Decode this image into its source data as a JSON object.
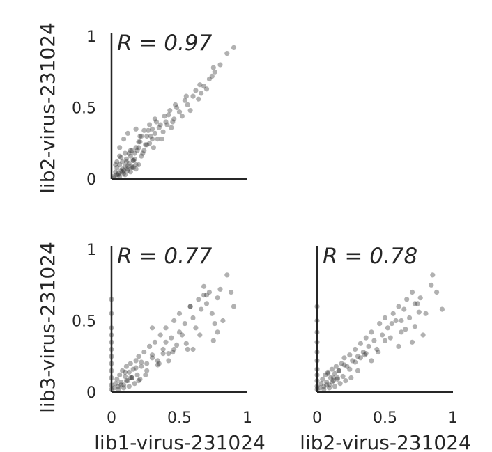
{
  "chart_data": [
    {
      "type": "scatter",
      "panel": "lib1-vs-lib2",
      "xlabel": "",
      "ylabel": "lib2-virus-231024",
      "annotation": "R = 0.97",
      "xlim": [
        0,
        1
      ],
      "ylim": [
        0,
        1
      ],
      "xticks": [
        "0",
        "0.5",
        "1"
      ],
      "yticks": [
        "0",
        "0.5",
        "1"
      ],
      "show_xticks": false,
      "grid": false,
      "x": [
        0.02,
        0.03,
        0.04,
        0.05,
        0.06,
        0.07,
        0.08,
        0.09,
        0.1,
        0.11,
        0.12,
        0.13,
        0.14,
        0.15,
        0.16,
        0.17,
        0.18,
        0.2,
        0.22,
        0.24,
        0.26,
        0.28,
        0.3,
        0.32,
        0.34,
        0.36,
        0.38,
        0.4,
        0.42,
        0.44,
        0.46,
        0.48,
        0.5,
        0.52,
        0.54,
        0.56,
        0.58,
        0.6,
        0.62,
        0.64,
        0.66,
        0.68,
        0.7,
        0.72,
        0.74,
        0.76,
        0.8,
        0.85,
        0.9,
        0.03,
        0.05,
        0.07,
        0.09,
        0.11,
        0.13,
        0.15,
        0.17,
        0.19,
        0.21,
        0.23,
        0.25,
        0.27,
        0.29,
        0.31,
        0.33,
        0.35,
        0.37,
        0.39,
        0.41,
        0.43,
        0.45,
        0.47,
        0.55,
        0.65,
        0.75,
        0.02,
        0.04,
        0.06,
        0.08,
        0.1,
        0.12,
        0.14,
        0.16,
        0.18,
        0.2,
        0.04,
        0.06,
        0.08,
        0.1,
        0.12,
        0.14,
        0.16,
        0.18,
        0.2,
        0.22,
        0.24,
        0.26,
        0.28,
        0.3,
        0.32,
        0.06,
        0.09,
        0.12,
        0.15,
        0.18,
        0.21
      ],
      "y": [
        0.02,
        0.05,
        0.08,
        0.03,
        0.1,
        0.06,
        0.12,
        0.04,
        0.09,
        0.14,
        0.07,
        0.11,
        0.16,
        0.08,
        0.13,
        0.18,
        0.1,
        0.22,
        0.16,
        0.2,
        0.3,
        0.25,
        0.35,
        0.32,
        0.28,
        0.38,
        0.33,
        0.4,
        0.45,
        0.36,
        0.42,
        0.5,
        0.47,
        0.44,
        0.55,
        0.52,
        0.48,
        0.58,
        0.62,
        0.56,
        0.6,
        0.65,
        0.63,
        0.7,
        0.72,
        0.75,
        0.8,
        0.88,
        0.92,
        0.1,
        0.04,
        0.15,
        0.06,
        0.12,
        0.18,
        0.09,
        0.14,
        0.2,
        0.26,
        0.18,
        0.24,
        0.34,
        0.3,
        0.22,
        0.4,
        0.36,
        0.28,
        0.44,
        0.38,
        0.48,
        0.4,
        0.52,
        0.58,
        0.66,
        0.78,
        0.01,
        0.03,
        0.02,
        0.05,
        0.03,
        0.06,
        0.05,
        0.08,
        0.07,
        0.1,
        0.12,
        0.16,
        0.07,
        0.18,
        0.09,
        0.2,
        0.13,
        0.22,
        0.26,
        0.3,
        0.34,
        0.24,
        0.38,
        0.28,
        0.42,
        0.22,
        0.28,
        0.32,
        0.2,
        0.35,
        0.3
      ]
    },
    {
      "type": "scatter",
      "panel": "lib1-vs-lib3",
      "xlabel": "lib1-virus-231024",
      "ylabel": "lib3-virus-231024",
      "annotation": "R = 0.77",
      "xlim": [
        0,
        1
      ],
      "ylim": [
        0,
        1
      ],
      "xticks": [
        "0",
        "0.5",
        "1"
      ],
      "yticks": [
        "0",
        "0.5",
        "1"
      ],
      "grid": false,
      "x": [
        0.0,
        0.0,
        0.0,
        0.0,
        0.0,
        0.0,
        0.0,
        0.0,
        0.0,
        0.0,
        0.0,
        0.0,
        0.02,
        0.03,
        0.04,
        0.05,
        0.06,
        0.07,
        0.08,
        0.09,
        0.1,
        0.11,
        0.12,
        0.13,
        0.14,
        0.15,
        0.16,
        0.18,
        0.2,
        0.22,
        0.24,
        0.26,
        0.28,
        0.3,
        0.32,
        0.34,
        0.36,
        0.38,
        0.4,
        0.42,
        0.44,
        0.46,
        0.48,
        0.5,
        0.52,
        0.54,
        0.56,
        0.58,
        0.6,
        0.62,
        0.64,
        0.66,
        0.68,
        0.7,
        0.72,
        0.74,
        0.76,
        0.78,
        0.8,
        0.85,
        0.9,
        0.25,
        0.35,
        0.45,
        0.55,
        0.65,
        0.75,
        0.82,
        0.5,
        0.6,
        0.7,
        0.4,
        0.3,
        0.2,
        0.58,
        0.68,
        0.78,
        0.88,
        0.05,
        0.07,
        0.09,
        0.11,
        0.13,
        0.15,
        0.17,
        0.19,
        0.21,
        0.1,
        0.14,
        0.18,
        0.22,
        0.26,
        0.3,
        0.34,
        0.38,
        0.42,
        0.46
      ],
      "y": [
        0.65,
        0.55,
        0.45,
        0.4,
        0.35,
        0.3,
        0.25,
        0.2,
        0.15,
        0.1,
        0.05,
        0.02,
        0.03,
        0.06,
        0.09,
        0.04,
        0.12,
        0.07,
        0.15,
        0.05,
        0.11,
        0.18,
        0.08,
        0.14,
        0.2,
        0.1,
        0.16,
        0.22,
        0.25,
        0.18,
        0.28,
        0.2,
        0.32,
        0.26,
        0.35,
        0.22,
        0.4,
        0.3,
        0.45,
        0.27,
        0.38,
        0.5,
        0.33,
        0.55,
        0.4,
        0.48,
        0.3,
        0.6,
        0.52,
        0.45,
        0.65,
        0.58,
        0.68,
        0.62,
        0.7,
        0.55,
        0.48,
        0.66,
        0.72,
        0.82,
        0.6,
        0.12,
        0.2,
        0.28,
        0.34,
        0.4,
        0.36,
        0.5,
        0.42,
        0.3,
        0.68,
        0.35,
        0.45,
        0.08,
        0.6,
        0.74,
        0.42,
        0.7,
        0.02,
        0.05,
        0.03,
        0.08,
        0.04,
        0.1,
        0.06,
        0.12,
        0.09,
        0.14,
        0.1,
        0.17,
        0.21,
        0.15,
        0.24,
        0.19,
        0.27,
        0.22,
        0.3
      ]
    },
    {
      "type": "scatter",
      "panel": "lib2-vs-lib3",
      "xlabel": "lib2-virus-231024",
      "ylabel": "",
      "annotation": "R = 0.78",
      "xlim": [
        0,
        1
      ],
      "ylim": [
        0,
        1
      ],
      "xticks": [
        "0",
        "0.5",
        "1"
      ],
      "yticks": [
        "0",
        "0.5",
        "1"
      ],
      "show_yticks": false,
      "grid": false,
      "x": [
        0.0,
        0.0,
        0.0,
        0.0,
        0.0,
        0.0,
        0.0,
        0.0,
        0.0,
        0.0,
        0.0,
        0.02,
        0.03,
        0.04,
        0.05,
        0.06,
        0.07,
        0.08,
        0.09,
        0.1,
        0.11,
        0.12,
        0.13,
        0.14,
        0.15,
        0.16,
        0.18,
        0.2,
        0.22,
        0.24,
        0.26,
        0.28,
        0.3,
        0.32,
        0.34,
        0.36,
        0.38,
        0.4,
        0.42,
        0.44,
        0.46,
        0.48,
        0.5,
        0.52,
        0.54,
        0.56,
        0.58,
        0.6,
        0.62,
        0.64,
        0.66,
        0.68,
        0.7,
        0.72,
        0.74,
        0.76,
        0.78,
        0.8,
        0.84,
        0.88,
        0.92,
        0.3,
        0.4,
        0.5,
        0.55,
        0.6,
        0.65,
        0.7,
        0.75,
        0.85,
        0.45,
        0.35,
        0.25,
        0.62,
        0.72,
        0.05,
        0.07,
        0.09,
        0.11,
        0.13,
        0.15,
        0.17,
        0.19,
        0.21,
        0.08,
        0.12,
        0.16,
        0.2,
        0.24,
        0.28,
        0.32,
        0.36
      ],
      "y": [
        0.6,
        0.5,
        0.42,
        0.35,
        0.28,
        0.22,
        0.16,
        0.12,
        0.08,
        0.04,
        0.02,
        0.03,
        0.06,
        0.09,
        0.04,
        0.12,
        0.07,
        0.14,
        0.05,
        0.1,
        0.16,
        0.08,
        0.13,
        0.18,
        0.1,
        0.15,
        0.2,
        0.24,
        0.18,
        0.26,
        0.22,
        0.3,
        0.25,
        0.34,
        0.28,
        0.38,
        0.32,
        0.42,
        0.36,
        0.3,
        0.48,
        0.4,
        0.52,
        0.45,
        0.38,
        0.55,
        0.5,
        0.6,
        0.42,
        0.58,
        0.65,
        0.52,
        0.7,
        0.46,
        0.62,
        0.66,
        0.4,
        0.55,
        0.75,
        0.7,
        0.58,
        0.15,
        0.22,
        0.36,
        0.48,
        0.32,
        0.44,
        0.35,
        0.56,
        0.82,
        0.28,
        0.26,
        0.1,
        0.5,
        0.62,
        0.02,
        0.05,
        0.03,
        0.07,
        0.04,
        0.09,
        0.06,
        0.11,
        0.08,
        0.13,
        0.1,
        0.15,
        0.19,
        0.16,
        0.21,
        0.24,
        0.27
      ]
    }
  ]
}
